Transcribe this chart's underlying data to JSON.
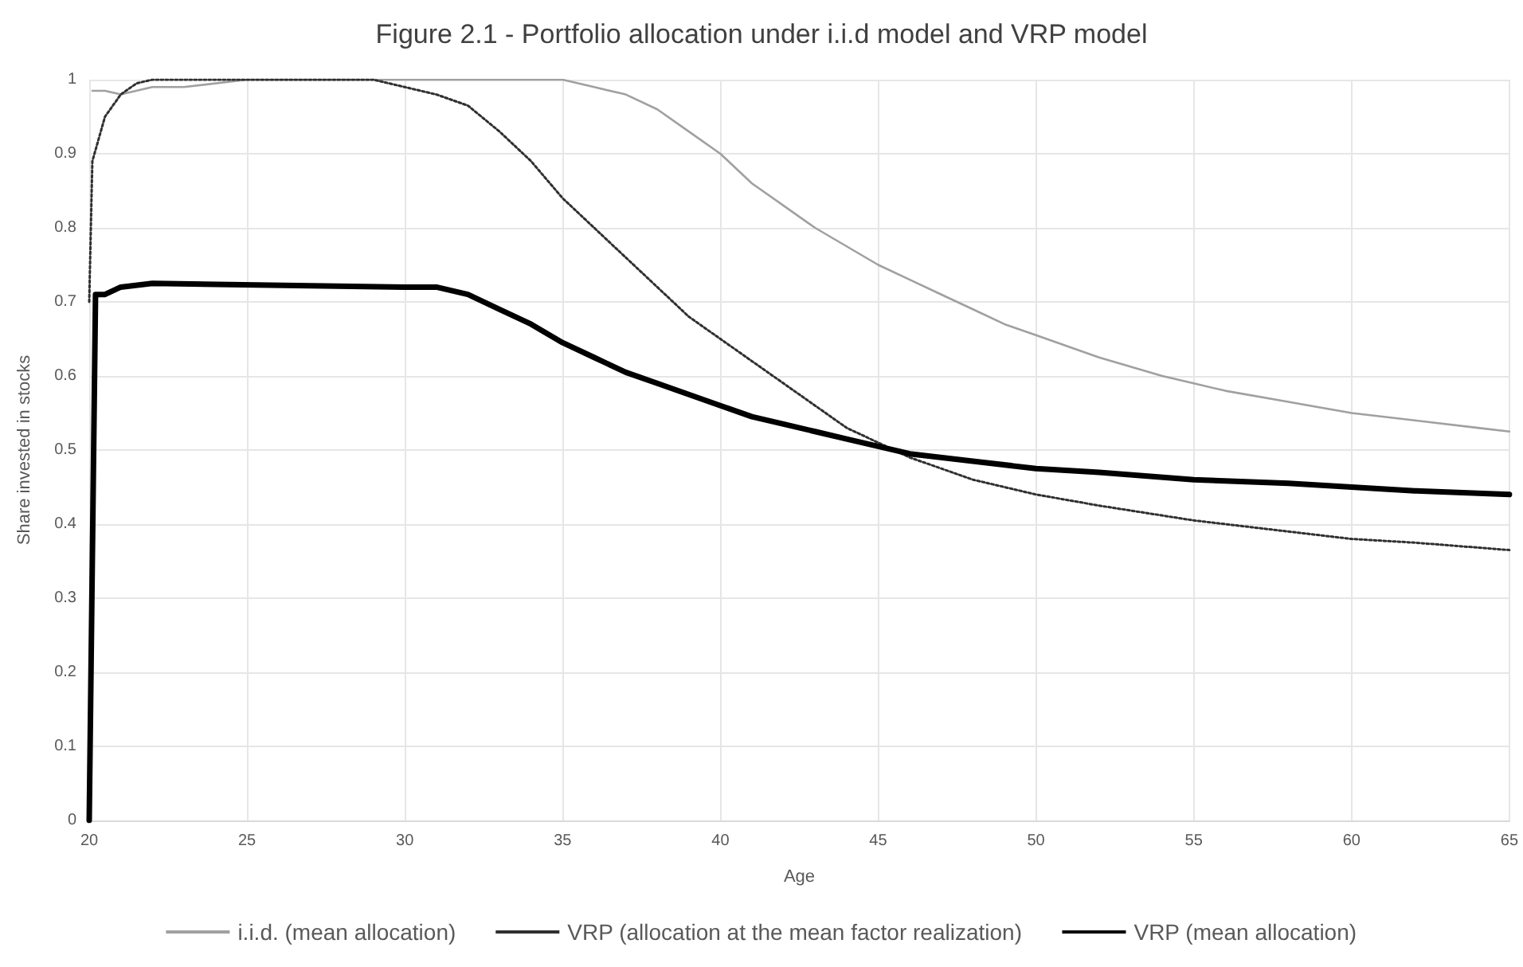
{
  "chart_data": {
    "type": "line",
    "title": "Figure 2.1 - Portfolio allocation under i.i.d model and VRP model",
    "xlabel": "Age",
    "ylabel": "Share invested in stocks",
    "xlim": [
      20,
      65
    ],
    "xticks": [
      20,
      25,
      30,
      35,
      40,
      45,
      50,
      55,
      60,
      65
    ],
    "ylim": [
      0,
      1
    ],
    "yticks": [
      0,
      0.1,
      0.2,
      0.3,
      0.4,
      0.5,
      0.6,
      0.7,
      0.8,
      0.9,
      1
    ],
    "grid": true,
    "legend": "bottom",
    "series": [
      {
        "name": "i.i.d. (mean allocation)",
        "color": "#a0a0a0",
        "line_style": "solid",
        "x": [
          20.1,
          20.5,
          21,
          22,
          23,
          25,
          30,
          35,
          36,
          37,
          38,
          39,
          40,
          41,
          42,
          43,
          44,
          45,
          46,
          47,
          48,
          49,
          50,
          52,
          54,
          55,
          56,
          58,
          60,
          62,
          64,
          65
        ],
        "values": [
          0.985,
          0.985,
          0.98,
          0.99,
          0.99,
          1.0,
          1.0,
          1.0,
          0.99,
          0.98,
          0.96,
          0.93,
          0.9,
          0.86,
          0.83,
          0.8,
          0.775,
          0.75,
          0.73,
          0.71,
          0.69,
          0.67,
          0.655,
          0.625,
          0.6,
          0.59,
          0.58,
          0.565,
          0.55,
          0.54,
          0.53,
          0.525
        ]
      },
      {
        "name": "VRP (allocation at the mean factor realization)",
        "color": "#303030",
        "line_style": "dotted",
        "x": [
          20,
          20.1,
          20.5,
          21,
          21.5,
          22,
          29,
          30,
          31,
          32,
          33,
          34,
          35,
          36,
          37,
          38,
          39,
          40,
          41,
          42,
          43,
          44,
          45,
          46,
          47,
          48,
          50,
          52,
          55,
          58,
          60,
          62,
          65
        ],
        "values": [
          0.7,
          0.89,
          0.95,
          0.98,
          0.995,
          1.0,
          1.0,
          0.99,
          0.98,
          0.965,
          0.93,
          0.89,
          0.84,
          0.8,
          0.76,
          0.72,
          0.68,
          0.65,
          0.62,
          0.59,
          0.56,
          0.53,
          0.51,
          0.49,
          0.475,
          0.46,
          0.44,
          0.425,
          0.405,
          0.39,
          0.38,
          0.375,
          0.365
        ]
      },
      {
        "name": "VRP (mean allocation)",
        "color": "#000000",
        "line_style": "solid",
        "x": [
          20,
          20.2,
          20.5,
          21,
          22,
          30,
          31,
          32,
          33,
          34,
          35,
          36,
          37,
          38,
          39,
          40,
          41,
          42,
          43,
          44,
          45,
          46,
          48,
          50,
          52,
          55,
          58,
          60,
          62,
          65
        ],
        "values": [
          0,
          0.71,
          0.71,
          0.72,
          0.725,
          0.72,
          0.72,
          0.71,
          0.69,
          0.67,
          0.645,
          0.625,
          0.605,
          0.59,
          0.575,
          0.56,
          0.545,
          0.535,
          0.525,
          0.515,
          0.505,
          0.495,
          0.485,
          0.475,
          0.47,
          0.46,
          0.455,
          0.45,
          0.445,
          0.44
        ]
      }
    ]
  }
}
